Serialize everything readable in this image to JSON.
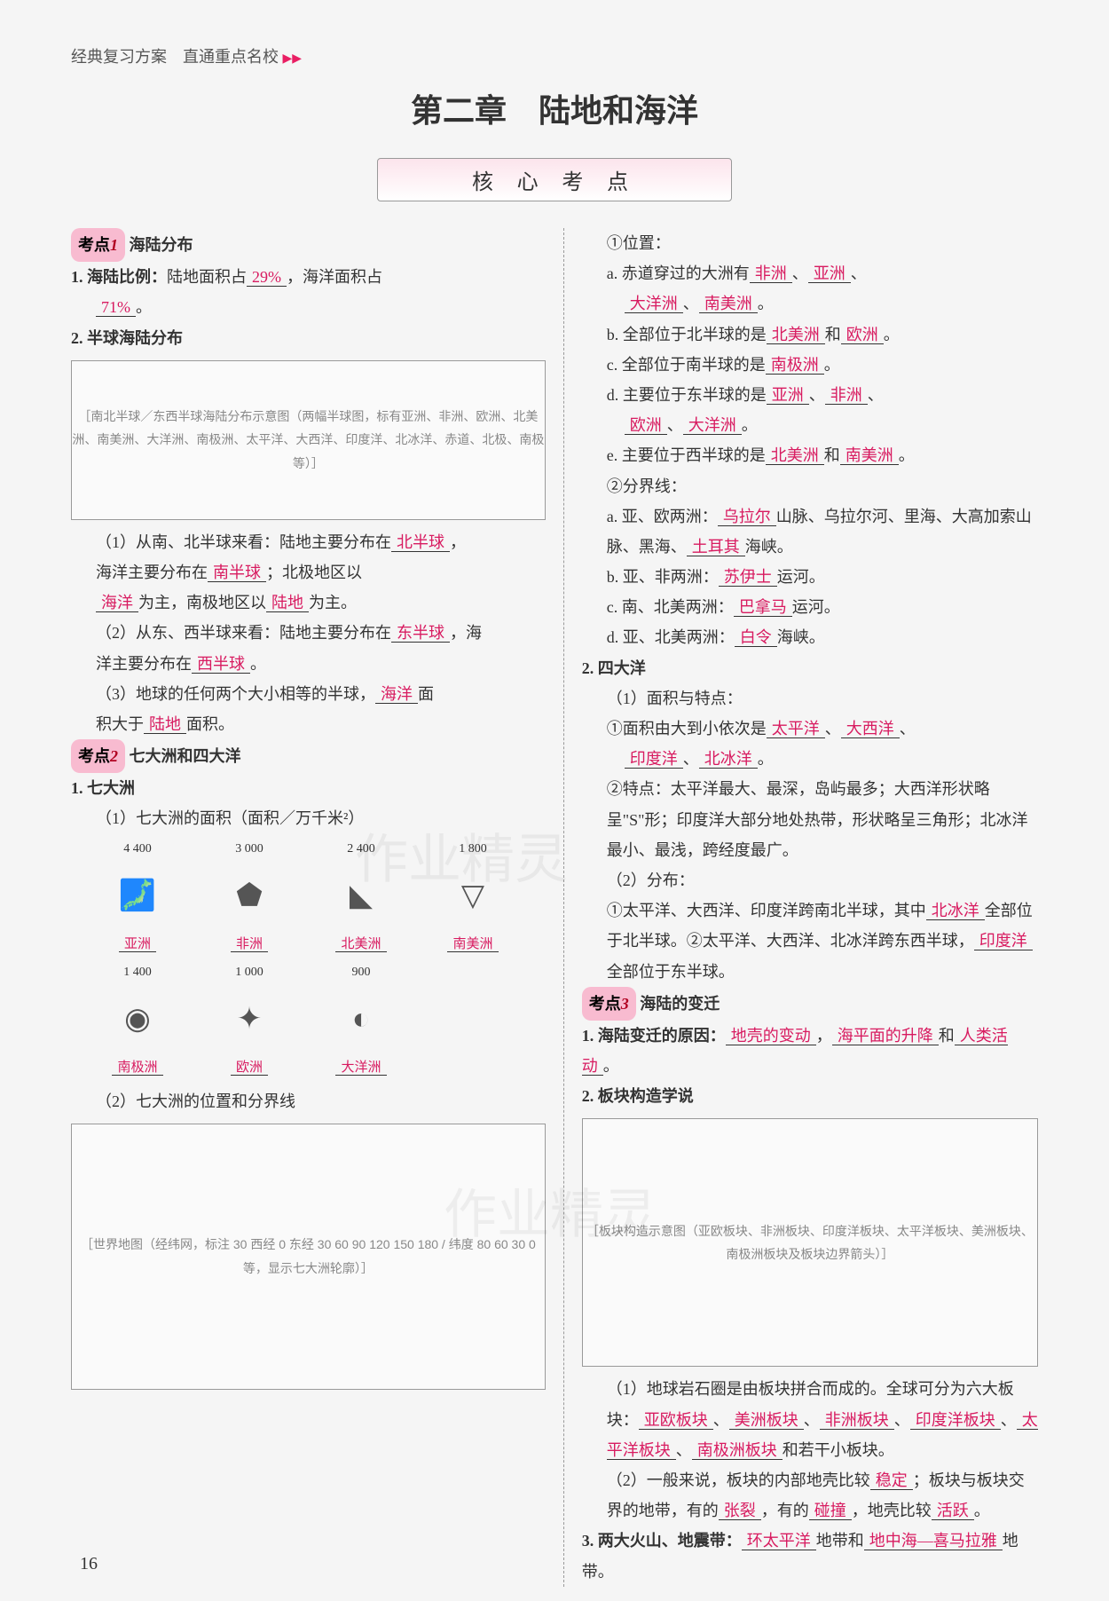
{
  "header": "经典复习方案　直通重点名校",
  "chapter": "第二章　陆地和海洋",
  "coreBox": "核 心 考 点",
  "kd1": {
    "label": "考点",
    "num": "1",
    "title": "海陆分布"
  },
  "kd2": {
    "label": "考点",
    "num": "2",
    "title": "七大洲和四大洋"
  },
  "kd3": {
    "label": "考点",
    "num": "3",
    "title": "海陆的变迁"
  },
  "left": {
    "p1a": "1. 海陆比例：",
    "p1b": "陆地面积占",
    "a1": "29%",
    "p1c": "，海洋面积占",
    "a2": "71%",
    "p1d": "。",
    "p2": "2. 半球海陆分布",
    "mapHemis": "［南北半球／东西半球海陆分布示意图（两幅半球图，标有亚洲、非洲、欧洲、北美洲、南美洲、大洋洲、南极洲、太平洋、大西洋、印度洋、北冰洋、赤道、北极、南极等）］",
    "q1a": "（1）从南、北半球来看：陆地主要分布在",
    "a3": "北半球",
    "q1b": "，",
    "q1c": "海洋主要分布在",
    "a4": "南半球",
    "q1d": "；北极地区以",
    "a5": "海洋",
    "q1e": "为主，南极地区以",
    "a6": "陆地",
    "q1f": "为主。",
    "q2a": "（2）从东、西半球来看：陆地主要分布在",
    "a7": "东半球",
    "q2b": "，海",
    "q2c": "洋主要分布在",
    "a8": "西半球",
    "q2d": "。",
    "q3a": "（3）地球的任何两个大小相等的半球，",
    "a9": "海洋",
    "q3b": "面",
    "q3c": "积大于",
    "a10": "陆地",
    "q3d": "面积。",
    "p3": "1. 七大洲",
    "p3a": "（1）七大洲的面积（面积／万千米²）",
    "continents": [
      {
        "area": "4 400",
        "name": "亚洲"
      },
      {
        "area": "3 000",
        "name": "非洲"
      },
      {
        "area": "2 400",
        "name": "北美洲"
      },
      {
        "area": "1 800",
        "name": "南美洲"
      },
      {
        "area": "1 400",
        "name": "南极洲"
      },
      {
        "area": "1 000",
        "name": "欧洲"
      },
      {
        "area": "900",
        "name": "大洋洲"
      }
    ],
    "p3b": "（2）七大洲的位置和分界线",
    "mapWorld": "［世界地图（经纬网，标注 30 西经 0 东经 30 60 90 120 150 180 / 纬度 80 60 30 0 等，显示七大洲轮廓）］"
  },
  "right": {
    "pos": "①位置：",
    "aLine": "a. 赤道穿过的大洲有",
    "aa1": "非洲",
    "aa2": "亚洲",
    "aa3": "大洋洲",
    "aa4": "南美洲",
    "aEnd": "。",
    "bLine": "b. 全部位于北半球的是",
    "ab1": "北美洲",
    "bMid": "和",
    "ab2": "欧洲",
    "bEnd": "。",
    "cLine": "c. 全部位于南半球的是",
    "ac1": "南极洲",
    "cEnd": "。",
    "dLine": "d. 主要位于东半球的是",
    "ad1": "亚洲",
    "ad2": "非洲",
    "ad3": "欧洲",
    "ad4": "大洋洲",
    "dEnd": "。",
    "eLine": "e. 主要位于西半球的是",
    "ae1": "北美洲",
    "eMid": "和",
    "ae2": "南美洲",
    "eEnd": "。",
    "bound": "②分界线：",
    "ba": "a. 亚、欧两洲：",
    "ba1": "乌拉尔",
    "baT": "山脉、乌拉尔河、里海、大高加索山脉、黑海、",
    "ba2": "土耳其",
    "baE": "海峡。",
    "bb": "b. 亚、非两洲：",
    "bb1": "苏伊士",
    "bbE": "运河。",
    "bc": "c. 南、北美两洲：",
    "bc1": "巴拿马",
    "bcE": "运河。",
    "bd": "d. 亚、北美两洲：",
    "bd1": "白令",
    "bdE": "海峡。",
    "p4": "2. 四大洋",
    "p4a": "（1）面积与特点：",
    "p4b": "①面积由大到小依次是",
    "o1": "太平洋",
    "o2": "大西洋",
    "o3": "印度洋",
    "o4": "北冰洋",
    "p4bE": "。",
    "p4c": "②特点：太平洋最大、最深，岛屿最多；大西洋形状略呈\"S\"形；印度洋大部分地处热带，形状略呈三角形；北冰洋最小、最浅，跨经度最广。",
    "p4d": "（2）分布：",
    "p4e1": "①太平洋、大西洋、印度洋跨南北半球，其中",
    "od1": "北冰洋",
    "p4e2": "全部位于北半球。②太平洋、大西洋、北冰洋跨东西半球，",
    "od2": "印度洋",
    "p4e3": "全部位于东半球。",
    "p5a": "1. 海陆变迁的原因：",
    "r1": "地壳的变动",
    "p5m": "，",
    "r2": "海平面的升降",
    "p5m2": "和",
    "r3": "人类活动",
    "p5e": "。",
    "p6": "2. 板块构造学说",
    "mapPlates": "［板块构造示意图（亚欧板块、非洲板块、印度洋板块、太平洋板块、美洲板块、南极洲板块及板块边界箭头）］",
    "q6a": "（1）地球岩石圈是由板块拼合而成的。全球可分为六大板块：",
    "pl1": "亚欧板块",
    "pl2": "美洲板块",
    "pl3": "非洲板块",
    "pl4": "印度洋板块",
    "pl5": "太平洋板块",
    "pl6": "南极洲板块",
    "q6b": "和若干小板块。",
    "q7a": "（2）一般来说，板块的内部地壳比较",
    "s1": "稳定",
    "q7b": "；板块与板块交界的地带，有的",
    "s2": "张裂",
    "q7c": "，有的",
    "s3": "碰撞",
    "q7d": "，地壳比较",
    "s4": "活跃",
    "q7e": "。",
    "q8a": "3. 两大火山、地震带：",
    "b1": "环太平洋",
    "q8b": "地带和",
    "b2": "地中海—喜马拉雅",
    "q8c": "地带。"
  },
  "pageNum": "16",
  "watermark": "作业精灵"
}
